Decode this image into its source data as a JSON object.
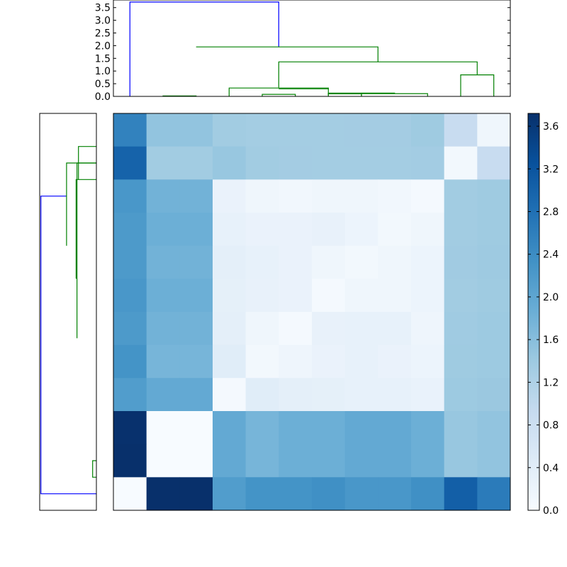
{
  "chart_data": [
    {
      "type": "dendrogram",
      "orientation": "top",
      "ylim": [
        0,
        3.8
      ],
      "yticks": [
        0.0,
        0.5,
        1.0,
        1.5,
        2.0,
        2.5,
        3.0,
        3.5
      ],
      "ytick_labels": [
        "0.0",
        "0.5",
        "1.0",
        "1.5",
        "2.0",
        "2.5",
        "3.0",
        "3.5"
      ],
      "leaf_count": 12,
      "colors": {
        "root": "#0000ff",
        "cluster": "#008000"
      },
      "links": [
        {
          "x": [
            0.5,
            0.5,
            5.0,
            5.0
          ],
          "h": [
            0.0,
            3.72,
            3.72,
            1.95
          ],
          "color": "root"
        },
        {
          "x": [
            2.5,
            2.5,
            8.0,
            8.0
          ],
          "h": [
            1.95,
            1.95,
            1.95,
            1.36
          ],
          "color": "cluster"
        },
        {
          "x": [
            1.5,
            1.5,
            2.5,
            2.5
          ],
          "h": [
            0.0,
            0.02,
            0.02,
            0.0
          ],
          "color": "cluster"
        },
        {
          "x": [
            5.0,
            5.0,
            11.0,
            11.0
          ],
          "h": [
            0.35,
            1.36,
            1.36,
            0.85
          ],
          "color": "cluster"
        },
        {
          "x": [
            10.5,
            10.5,
            11.5,
            11.5
          ],
          "h": [
            0.0,
            0.85,
            0.85,
            0.0
          ],
          "color": "cluster"
        },
        {
          "x": [
            3.5,
            3.5,
            6.5,
            6.5
          ],
          "h": [
            0.0,
            0.33,
            0.33,
            0.3
          ],
          "color": "cluster"
        },
        {
          "x": [
            5.0,
            5.0,
            6.5,
            6.5
          ],
          "h": [
            0.3,
            0.3,
            0.3,
            0.05
          ],
          "color": "cluster"
        },
        {
          "x": [
            4.5,
            4.5,
            5.5,
            5.5
          ],
          "h": [
            0.0,
            0.08,
            0.08,
            0.0
          ],
          "color": "cluster"
        },
        {
          "x": [
            6.5,
            6.5,
            8.5,
            8.5
          ],
          "h": [
            0.05,
            0.13,
            0.13,
            0.11
          ],
          "color": "cluster"
        },
        {
          "x": [
            6.5,
            6.5,
            7.5,
            7.5
          ],
          "h": [
            0.0,
            0.1,
            0.1,
            0.0
          ],
          "color": "cluster"
        },
        {
          "x": [
            7.5,
            7.5,
            9.5,
            9.5
          ],
          "h": [
            0.0,
            0.11,
            0.11,
            0.0
          ],
          "color": "cluster"
        }
      ]
    },
    {
      "type": "dendrogram",
      "orientation": "left",
      "leaf_count": 12,
      "xlim": [
        0,
        3.8
      ],
      "colors": {
        "root": "#0000ff",
        "cluster": "#008000"
      },
      "links": [
        {
          "y": [
            0.5,
            0.5,
            9.5,
            9.5
          ],
          "h": [
            0.0,
            3.72,
            3.72,
            2.0
          ],
          "color": "root"
        },
        {
          "y": [
            8.0,
            8.0,
            10.5,
            10.5
          ],
          "h": [
            2.0,
            2.0,
            2.0,
            0.0
          ],
          "color": "cluster"
        },
        {
          "y": [
            5.2,
            5.2,
            10.5,
            10.5
          ],
          "h": [
            1.3,
            1.3,
            1.3,
            0.0
          ],
          "color": "cluster"
        },
        {
          "y": [
            7.0,
            7.0,
            10.0,
            10.0
          ],
          "h": [
            1.36,
            1.36,
            1.36,
            0.0
          ],
          "color": "cluster"
        },
        {
          "y": [
            10.0,
            10.0,
            11.0,
            11.0
          ],
          "h": [
            1.2,
            1.2,
            1.2,
            0.0
          ],
          "color": "cluster"
        },
        {
          "y": [
            1.0,
            1.0,
            1.5,
            1.5
          ],
          "h": [
            0.0,
            0.25,
            0.25,
            0.0
          ],
          "color": "cluster"
        }
      ]
    },
    {
      "type": "heatmap",
      "rows": 12,
      "cols": 12,
      "values": [
        [
          2.55,
          1.5,
          1.5,
          1.35,
          1.32,
          1.32,
          1.32,
          1.33,
          1.33,
          1.38,
          0.9,
          0.15
        ],
        [
          3.0,
          1.35,
          1.35,
          1.45,
          1.35,
          1.33,
          1.32,
          1.32,
          1.32,
          1.34,
          0.1,
          0.9
        ],
        [
          2.25,
          1.8,
          1.8,
          0.25,
          0.15,
          0.12,
          0.15,
          0.15,
          0.12,
          0.05,
          1.35,
          1.38
        ],
        [
          2.2,
          1.85,
          1.85,
          0.3,
          0.25,
          0.25,
          0.28,
          0.2,
          0.1,
          0.15,
          1.35,
          1.38
        ],
        [
          2.2,
          1.8,
          1.8,
          0.35,
          0.3,
          0.25,
          0.15,
          0.1,
          0.15,
          0.2,
          1.36,
          1.39
        ],
        [
          2.25,
          1.85,
          1.85,
          0.33,
          0.28,
          0.25,
          0.05,
          0.15,
          0.15,
          0.2,
          1.35,
          1.38
        ],
        [
          2.2,
          1.8,
          1.8,
          0.35,
          0.15,
          0.05,
          0.28,
          0.3,
          0.3,
          0.17,
          1.37,
          1.4
        ],
        [
          2.3,
          1.75,
          1.75,
          0.42,
          0.1,
          0.17,
          0.25,
          0.3,
          0.25,
          0.2,
          1.38,
          1.4
        ],
        [
          2.15,
          1.95,
          1.95,
          0.05,
          0.42,
          0.35,
          0.33,
          0.3,
          0.3,
          0.26,
          1.4,
          1.42
        ],
        [
          3.7,
          0.0,
          0.0,
          1.95,
          1.75,
          1.85,
          1.85,
          1.95,
          1.95,
          1.85,
          1.45,
          1.5
        ],
        [
          3.72,
          0.0,
          0.0,
          1.95,
          1.75,
          1.85,
          1.85,
          1.95,
          1.95,
          1.85,
          1.45,
          1.5
        ],
        [
          0.0,
          3.72,
          3.72,
          2.15,
          2.3,
          2.3,
          2.35,
          2.25,
          2.25,
          2.35,
          3.05,
          2.65
        ]
      ]
    },
    {
      "type": "colorbar",
      "vmin": 0.0,
      "vmax": 3.72,
      "cmap": [
        "#f7fbff",
        "#deebf7",
        "#c6dbef",
        "#9ecae1",
        "#6baed6",
        "#4292c6",
        "#2171b5",
        "#08519c",
        "#08306b"
      ],
      "ticks": [
        0.0,
        0.4,
        0.8,
        1.2,
        1.6,
        2.0,
        2.4,
        2.8,
        3.2,
        3.6
      ],
      "tick_labels": [
        "0.0",
        "0.4",
        "0.8",
        "1.2",
        "1.6",
        "2.0",
        "2.4",
        "2.8",
        "3.2",
        "3.6"
      ]
    }
  ]
}
